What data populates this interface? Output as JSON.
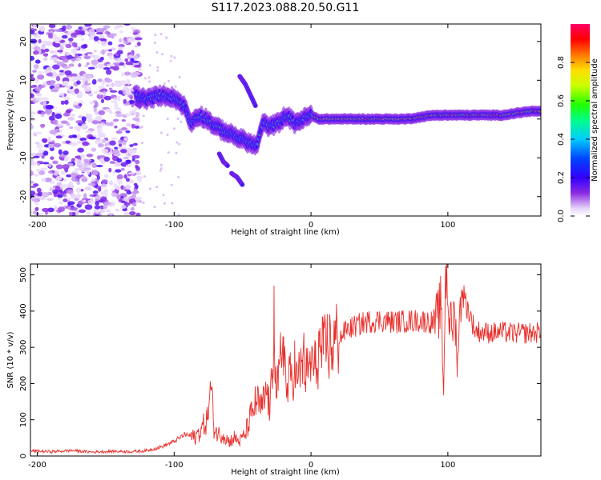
{
  "title": "S117.2023.088.20.50.G11",
  "chart_data": [
    {
      "type": "heatmap",
      "title": "",
      "xlabel": "Height of straight line (km)",
      "ylabel": "Frequency (Hz)",
      "xlim": [
        -205,
        168
      ],
      "ylim": [
        -25,
        24.5
      ],
      "xticks": [
        -200,
        -100,
        0,
        100
      ],
      "yticks": [
        -20,
        -10,
        0,
        10,
        20
      ],
      "colorbar": {
        "label": "Normalized spectral amplitude",
        "range": [
          0,
          1
        ],
        "ticks": [
          0.0,
          0.2,
          0.4,
          0.6,
          0.8
        ],
        "tick_labels": [
          "0.0",
          "0.2",
          "0.4",
          "0.6",
          "0.8"
        ]
      },
      "ridge_trace": {
        "description": "dominant frequency ridge",
        "x": [
          -128,
          -120,
          -112,
          -104,
          -98,
          -92,
          -88,
          -82,
          -76,
          -70,
          -64,
          -58,
          -52,
          -46,
          -40,
          -35,
          -30,
          -24,
          -18,
          -12,
          -6,
          0,
          5,
          15,
          30,
          50,
          70,
          90,
          100,
          120,
          140,
          160,
          168
        ],
        "y": [
          6,
          5,
          6,
          6,
          5,
          3,
          -1,
          1,
          0,
          -2,
          -3,
          -4,
          -5,
          -6,
          -7,
          -1,
          -2,
          -1,
          1,
          -1,
          0,
          1,
          0,
          0,
          0,
          0,
          0,
          1,
          1,
          1,
          1,
          2,
          2
        ]
      },
      "branches": [
        {
          "x": [
            -67,
            -64,
            -61
          ],
          "y": [
            -9,
            -11,
            -12
          ]
        },
        {
          "x": [
            -58,
            -54,
            -50
          ],
          "y": [
            -14,
            -15,
            -17
          ]
        },
        {
          "x": [
            -52,
            -48,
            -44,
            -40
          ],
          "y": [
            11,
            9,
            6,
            3
          ]
        }
      ]
    },
    {
      "type": "line",
      "title": "",
      "xlabel": "Height of straight line (km)",
      "ylabel": "SNR (10 * v/v)",
      "xlim": [
        -205,
        168
      ],
      "ylim": [
        0,
        530
      ],
      "xticks": [
        -200,
        -100,
        0,
        100
      ],
      "yticks": [
        0,
        100,
        200,
        300,
        400,
        500
      ],
      "series": [
        {
          "name": "SNR",
          "color": "#e8302c",
          "x": [
            -205,
            -190,
            -175,
            -160,
            -145,
            -130,
            -120,
            -110,
            -100,
            -92,
            -85,
            -80,
            -76,
            -73,
            -71,
            -68,
            -64,
            -60,
            -56,
            -52,
            -48,
            -44,
            -40,
            -36,
            -32,
            -30,
            -28,
            -27,
            -26,
            -24,
            -22,
            -20,
            -18,
            -15,
            -12,
            -10,
            -6,
            -3,
            0,
            3,
            6,
            9,
            12,
            15,
            18,
            22,
            26,
            30,
            40,
            50,
            60,
            70,
            80,
            88,
            92,
            95,
            97,
            98,
            99,
            101,
            103,
            105,
            107,
            110,
            120,
            130,
            140,
            150,
            160,
            168
          ],
          "y": [
            14,
            12,
            15,
            11,
            13,
            12,
            15,
            24,
            40,
            60,
            50,
            75,
            100,
            190,
            80,
            60,
            60,
            40,
            50,
            40,
            60,
            110,
            150,
            130,
            180,
            120,
            240,
            470,
            200,
            180,
            280,
            330,
            170,
            220,
            250,
            200,
            270,
            220,
            260,
            240,
            300,
            280,
            310,
            300,
            320,
            330,
            350,
            355,
            370,
            375,
            370,
            372,
            374,
            370,
            380,
            420,
            170,
            450,
            520,
            380,
            350,
            400,
            260,
            460,
            345,
            340,
            342,
            338,
            340,
            340
          ]
        }
      ]
    }
  ]
}
